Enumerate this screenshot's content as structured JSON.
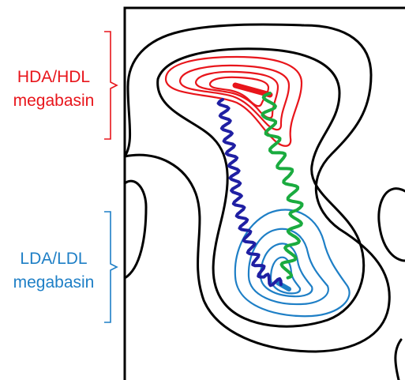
{
  "labels": {
    "hda_line1": "HDA/HDL",
    "hda_line2": "megabasin",
    "lda_line1": "LDA/LDL",
    "lda_line2": "megabasin"
  },
  "colors": {
    "hda": "#e8151b",
    "lda": "#1e7fc6",
    "outer": "#000000",
    "blue_path": "#1f1fa3",
    "green_path": "#1aab3f"
  }
}
